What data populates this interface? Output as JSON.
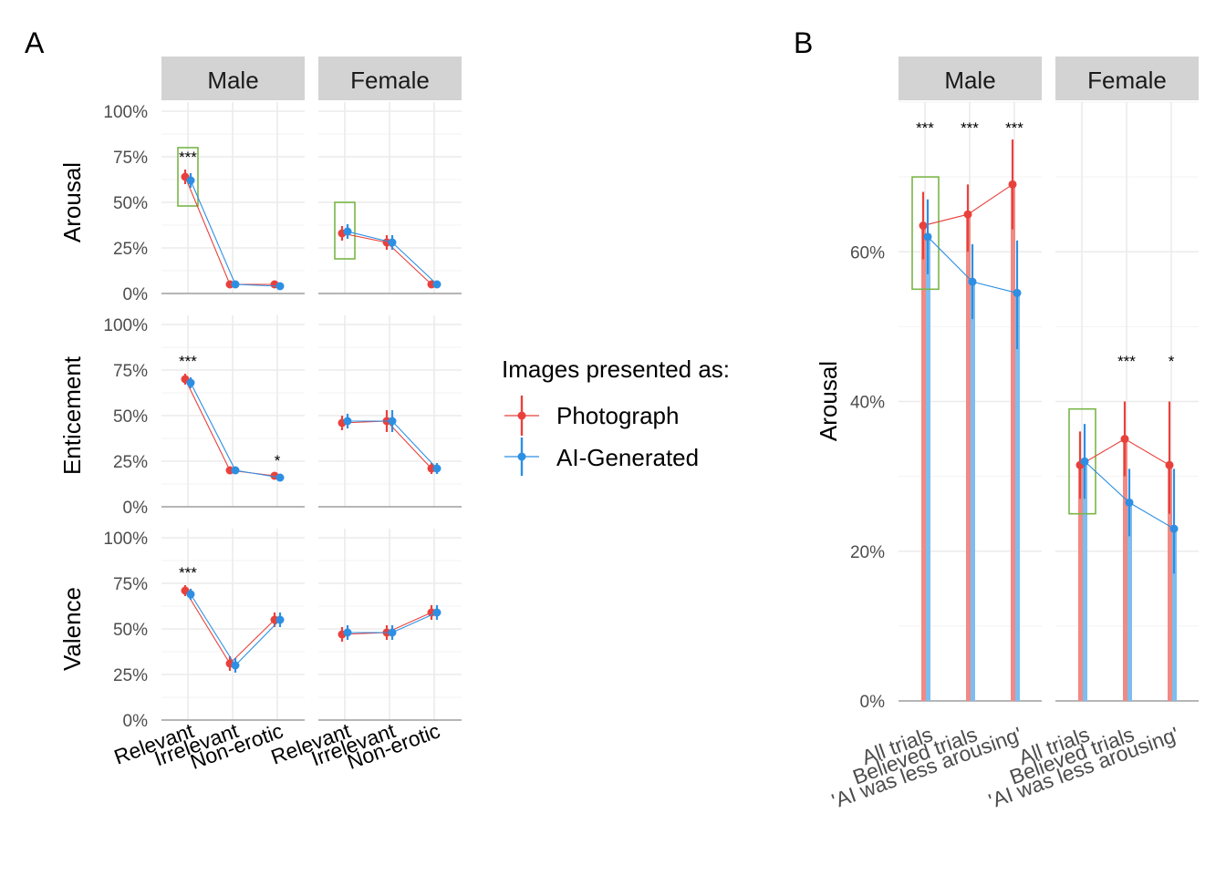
{
  "colors": {
    "photograph": "#E8413C",
    "ai": "#2D8FE3",
    "photograph_bar": "#F08A85",
    "ai_bar": "#7DBDF0",
    "highlight_box": "#7AB648"
  },
  "labels": {
    "panel_a": "A",
    "panel_b": "B"
  },
  "legend": {
    "title": "Images presented as:",
    "items": [
      "Photograph",
      "AI-Generated"
    ]
  },
  "chart_data": [
    {
      "panel": "A",
      "type": "line",
      "facets_cols": [
        "Male",
        "Female"
      ],
      "facets_rows": [
        "Arousal",
        "Enticement",
        "Valence"
      ],
      "categories": [
        "Relevant",
        "Irrelevant",
        "Non-erotic"
      ],
      "ylim": [
        0,
        100
      ],
      "y_ticks": [
        "0%",
        "25%",
        "50%",
        "75%",
        "100%"
      ],
      "grid": true,
      "legend_position": "right",
      "cells": [
        {
          "row": "Arousal",
          "col": "Male",
          "photograph": [
            64,
            5,
            5
          ],
          "ai": [
            62,
            5,
            4
          ],
          "photo_err": [
            4,
            1,
            1
          ],
          "ai_err": [
            4,
            1,
            1
          ],
          "sig": [
            "***",
            "",
            ""
          ],
          "highlight": 0
        },
        {
          "row": "Arousal",
          "col": "Female",
          "photograph": [
            33,
            28,
            5
          ],
          "ai": [
            34,
            28,
            5
          ],
          "photo_err": [
            4,
            4,
            1.5
          ],
          "ai_err": [
            4,
            4,
            1.5
          ],
          "sig": [
            "",
            "",
            ""
          ],
          "highlight": 0
        },
        {
          "row": "Enticement",
          "col": "Male",
          "photograph": [
            70,
            20,
            17
          ],
          "ai": [
            68,
            20,
            16
          ],
          "photo_err": [
            3,
            2,
            1.5
          ],
          "ai_err": [
            3,
            2,
            1.5
          ],
          "sig": [
            "***",
            "",
            "*"
          ],
          "highlight": -1
        },
        {
          "row": "Enticement",
          "col": "Female",
          "photograph": [
            46,
            47,
            21
          ],
          "ai": [
            47,
            47,
            21
          ],
          "photo_err": [
            4,
            6,
            3
          ],
          "ai_err": [
            4,
            6,
            3
          ],
          "sig": [
            "",
            "",
            ""
          ],
          "highlight": -1
        },
        {
          "row": "Valence",
          "col": "Male",
          "photograph": [
            71,
            31,
            55
          ],
          "ai": [
            69,
            30,
            55
          ],
          "photo_err": [
            3,
            4,
            4
          ],
          "ai_err": [
            3,
            4,
            4
          ],
          "sig": [
            "***",
            "",
            ""
          ],
          "highlight": -1
        },
        {
          "row": "Valence",
          "col": "Female",
          "photograph": [
            47,
            48,
            59
          ],
          "ai": [
            48,
            48,
            59
          ],
          "photo_err": [
            4,
            4,
            4
          ],
          "ai_err": [
            4,
            4,
            4
          ],
          "sig": [
            "",
            "",
            ""
          ],
          "highlight": -1
        }
      ]
    },
    {
      "panel": "B",
      "type": "bar",
      "facets_cols": [
        "Male",
        "Female"
      ],
      "ylabel": "Arousal",
      "categories": [
        "All trials",
        "Believed trials",
        "'AI was less arousing'"
      ],
      "ylim": [
        0,
        80
      ],
      "y_ticks": [
        "0%",
        "20%",
        "40%",
        "60%"
      ],
      "grid": true,
      "facets": [
        {
          "name": "Male",
          "photograph": [
            63.5,
            65,
            69
          ],
          "ai": [
            62,
            56,
            54.5
          ],
          "photo_lo": [
            59,
            60,
            63
          ],
          "photo_hi": [
            68,
            69,
            75
          ],
          "ai_lo": [
            57,
            51,
            47
          ],
          "ai_hi": [
            67,
            61,
            61.5
          ],
          "sig": [
            "***",
            "***",
            "***"
          ],
          "highlight": 0
        },
        {
          "name": "Female",
          "photograph": [
            31.5,
            35,
            31.5
          ],
          "ai": [
            32,
            26.5,
            23
          ],
          "photo_lo": [
            27,
            30,
            25
          ],
          "photo_hi": [
            36,
            40,
            40
          ],
          "ai_lo": [
            27,
            22,
            17
          ],
          "ai_hi": [
            37,
            31,
            31
          ],
          "sig": [
            "",
            "***",
            "*"
          ],
          "highlight": 0
        }
      ]
    }
  ]
}
